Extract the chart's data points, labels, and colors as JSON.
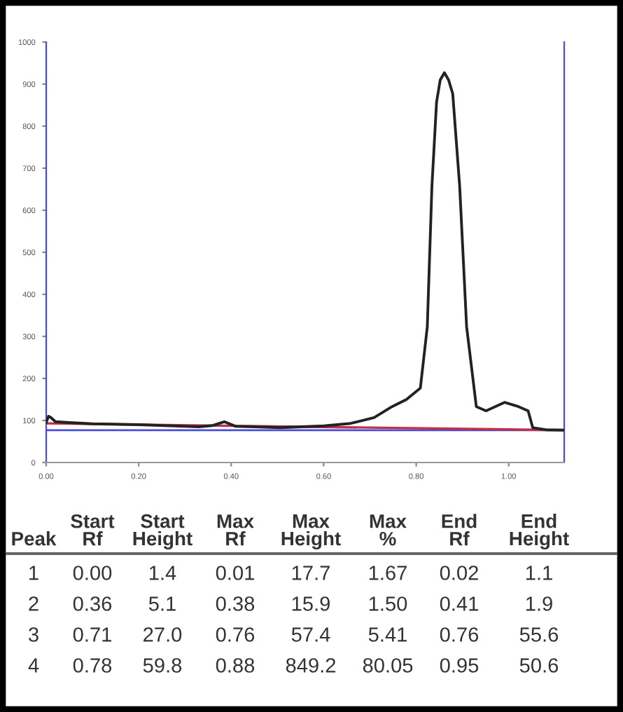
{
  "chart_data": {
    "type": "line",
    "xlim": [
      0,
      1.12
    ],
    "ylim": [
      0,
      1000
    ],
    "xticks": [
      {
        "value": 0,
        "label": "0.00"
      },
      {
        "value": 0.2,
        "label": "0.20"
      },
      {
        "value": 0.4,
        "label": "0.40"
      },
      {
        "value": 0.6,
        "label": "0.60"
      },
      {
        "value": 0.8,
        "label": "0.80"
      },
      {
        "value": 1.0,
        "label": "1.00"
      }
    ],
    "yticks": [
      0,
      100,
      200,
      300,
      400,
      500,
      600,
      700,
      800,
      900,
      1000
    ],
    "grid": false,
    "legend": false,
    "series": [
      {
        "color": "#222222",
        "x": [
          0,
          0.005,
          0.01,
          0.02,
          0.05,
          0.1,
          0.2,
          0.3,
          0.33,
          0.36,
          0.385,
          0.41,
          0.45,
          0.506,
          0.6,
          0.658,
          0.709,
          0.748,
          0.779,
          0.809,
          0.824,
          0.834,
          0.844,
          0.852,
          0.861,
          0.87,
          0.879,
          0.894,
          0.909,
          0.93,
          0.951,
          0.991,
          1.021,
          1.042,
          1.052,
          1.08,
          1.12
        ],
        "values": [
          95,
          110,
          107,
          97,
          95,
          92,
          90,
          86,
          85,
          88,
          97,
          86,
          85,
          83,
          87,
          93,
          107,
          133,
          150,
          177,
          323,
          657,
          857,
          910,
          927,
          910,
          877,
          657,
          323,
          133,
          123,
          143,
          133,
          123,
          83,
          78,
          77
        ]
      },
      {
        "color": "#c0304a",
        "x": [
          0,
          1.12
        ],
        "values": [
          93,
          77
        ]
      }
    ],
    "ref_lines": [
      {
        "axis": "y",
        "value": 77,
        "color": "#4a4adf"
      }
    ],
    "annotations": [
      "Peak",
      "Start\nRf",
      "Start\nHeight",
      "Max\nRf",
      "Max\nHeight",
      "Max\n%",
      "End\nRf",
      "End\nHeight",
      "1",
      "0.00",
      "1.4",
      "0.01",
      "17.7",
      "1.67",
      "0.02",
      "1.1",
      "2",
      "0.36",
      "5.1",
      "0.38",
      "15.9",
      "1.50",
      "0.41",
      "1.9",
      "3",
      "0.71",
      "27.0",
      "0.76",
      "57.4",
      "5.41",
      "0.76",
      "55.6",
      "4",
      "0.78",
      "59.8",
      "0.88",
      "849.2",
      "80.05",
      "0.95",
      "50.6"
    ]
  }
}
